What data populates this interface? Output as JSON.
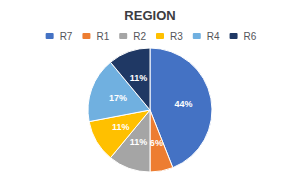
{
  "chart_data": {
    "type": "pie",
    "title": "REGION",
    "categories": [
      "R7",
      "R1",
      "R2",
      "R3",
      "R4",
      "R6"
    ],
    "values": [
      44,
      6,
      11,
      11,
      17,
      11
    ],
    "value_labels": [
      "44%",
      "6%",
      "11%",
      "11%",
      "17%",
      "11%"
    ],
    "colors": [
      "#4472C4",
      "#ED7D31",
      "#A5A5A5",
      "#FFC000",
      "#70B0E0",
      "#1F3864"
    ],
    "data_labels": true,
    "legend": "top"
  }
}
